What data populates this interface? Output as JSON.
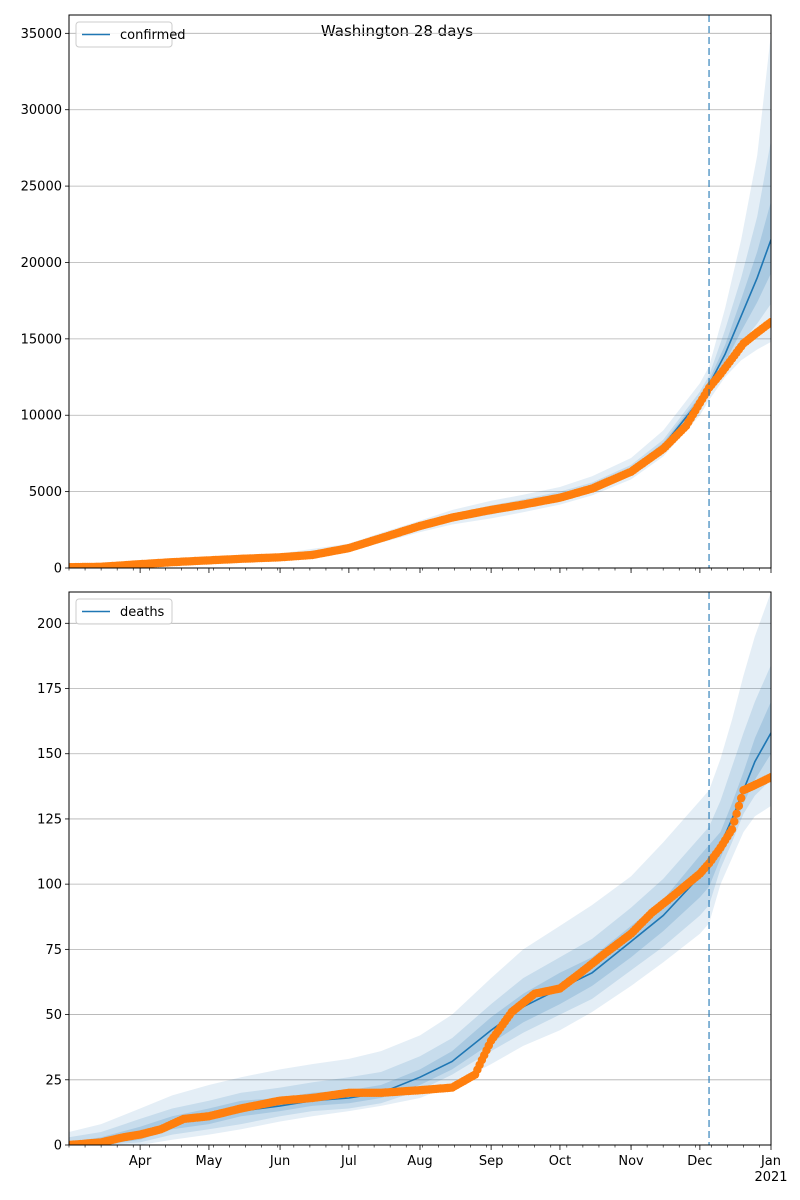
{
  "title": "Washington 28 days",
  "colors": {
    "model": "#1f77b4",
    "observed": "#ff7f0e",
    "band": "#1f77b4",
    "grid": "#b0b0b0",
    "forecast_line": "#1f77b4"
  },
  "x_axis": {
    "start": "2020-03-01",
    "end": "2021-01-01",
    "forecast_date": "2020-12-05",
    "ticks": [
      {
        "date": "2020-04-01",
        "label": "Apr",
        "sub": ""
      },
      {
        "date": "2020-05-01",
        "label": "May",
        "sub": ""
      },
      {
        "date": "2020-06-01",
        "label": "Jun",
        "sub": ""
      },
      {
        "date": "2020-07-01",
        "label": "Jul",
        "sub": ""
      },
      {
        "date": "2020-08-01",
        "label": "Aug",
        "sub": ""
      },
      {
        "date": "2020-09-01",
        "label": "Sep",
        "sub": ""
      },
      {
        "date": "2020-10-01",
        "label": "Oct",
        "sub": ""
      },
      {
        "date": "2020-11-01",
        "label": "Nov",
        "sub": ""
      },
      {
        "date": "2020-12-01",
        "label": "Dec",
        "sub": ""
      },
      {
        "date": "2021-01-01",
        "label": "Jan",
        "sub": "2021"
      }
    ]
  },
  "chart_data": [
    {
      "type": "line",
      "legend": "confirmed",
      "legend_position": "top-left",
      "grid": "y",
      "ylim": [
        0,
        36200
      ],
      "yticks": [
        0,
        5000,
        10000,
        15000,
        20000,
        25000,
        30000,
        35000
      ],
      "model_fit": {
        "x": [
          "2020-03-01",
          "2020-04-01",
          "2020-05-01",
          "2020-06-01",
          "2020-07-01",
          "2020-07-15",
          "2020-08-01",
          "2020-08-15",
          "2020-09-01",
          "2020-09-15",
          "2020-10-01",
          "2020-10-15",
          "2020-11-01",
          "2020-11-15",
          "2020-12-01",
          "2020-12-05",
          "2020-12-12",
          "2020-12-19",
          "2020-12-26",
          "2021-01-01"
        ],
        "y": [
          50,
          250,
          500,
          750,
          1300,
          1950,
          2700,
          3300,
          3800,
          4200,
          4700,
          5300,
          6400,
          8000,
          11000,
          12000,
          14000,
          16500,
          19000,
          21500
        ]
      },
      "bands": [
        {
          "level": "outer",
          "lower": [
            0,
            100,
            300,
            550,
            1050,
            1650,
            2350,
            2850,
            3250,
            3650,
            4150,
            4750,
            5800,
            7300,
            10000,
            11000,
            12500,
            13600,
            14300,
            14800
          ],
          "upper": [
            150,
            400,
            700,
            950,
            1600,
            2300,
            3100,
            3800,
            4400,
            4800,
            5300,
            6000,
            7200,
            9000,
            12100,
            13200,
            17000,
            21500,
            27000,
            35000
          ]
        },
        {
          "level": "mid",
          "lower": [
            25,
            170,
            400,
            650,
            1150,
            1780,
            2500,
            3050,
            3500,
            3900,
            4400,
            5000,
            6050,
            7600,
            10450,
            11400,
            13000,
            14700,
            16000,
            17300
          ],
          "upper": [
            90,
            320,
            600,
            860,
            1450,
            2130,
            2900,
            3550,
            4100,
            4500,
            5000,
            5600,
            6750,
            8400,
            11550,
            12600,
            15600,
            19000,
            23000,
            28000
          ]
        },
        {
          "level": "inner",
          "lower": [
            40,
            210,
            450,
            700,
            1220,
            1860,
            2600,
            3180,
            3650,
            4050,
            4550,
            5150,
            6250,
            7800,
            10750,
            11700,
            13450,
            15500,
            17400,
            19300
          ],
          "upper": [
            65,
            290,
            550,
            800,
            1380,
            2040,
            2800,
            3420,
            3950,
            4350,
            4850,
            5450,
            6550,
            8200,
            11250,
            12300,
            14600,
            17600,
            20700,
            24000
          ]
        }
      ],
      "observed": {
        "x": [
          "2020-03-01",
          "2020-03-15",
          "2020-04-01",
          "2020-04-15",
          "2020-05-01",
          "2020-05-15",
          "2020-06-01",
          "2020-06-15",
          "2020-07-01",
          "2020-07-15",
          "2020-08-01",
          "2020-08-15",
          "2020-09-01",
          "2020-09-15",
          "2020-10-01",
          "2020-10-15",
          "2020-11-01",
          "2020-11-15",
          "2020-11-25",
          "2020-12-01",
          "2020-12-05",
          "2020-12-10",
          "2020-12-15",
          "2020-12-20",
          "2020-12-25",
          "2021-01-01"
        ],
        "y": [
          50,
          80,
          250,
          380,
          500,
          600,
          700,
          850,
          1300,
          1950,
          2750,
          3300,
          3800,
          4150,
          4600,
          5200,
          6300,
          7800,
          9300,
          10800,
          11800,
          12700,
          13700,
          14700,
          15300,
          16100
        ]
      }
    },
    {
      "type": "line",
      "legend": "deaths",
      "legend_position": "top-left",
      "grid": "y",
      "ylim": [
        0,
        212
      ],
      "yticks": [
        0,
        25,
        50,
        75,
        100,
        125,
        150,
        175,
        200
      ],
      "model_fit": {
        "x": [
          "2020-03-01",
          "2020-03-15",
          "2020-04-01",
          "2020-04-15",
          "2020-05-01",
          "2020-05-15",
          "2020-06-01",
          "2020-06-15",
          "2020-07-01",
          "2020-07-15",
          "2020-08-01",
          "2020-08-15",
          "2020-09-01",
          "2020-09-15",
          "2020-10-01",
          "2020-10-15",
          "2020-11-01",
          "2020-11-15",
          "2020-12-01",
          "2020-12-05",
          "2020-12-10",
          "2020-12-15",
          "2020-12-20",
          "2020-12-25",
          "2021-01-01"
        ],
        "y": [
          0,
          1,
          4,
          8,
          11,
          13,
          15,
          17,
          18,
          20,
          26,
          32,
          44,
          53,
          60,
          66,
          78,
          88,
          103,
          107,
          115,
          125,
          136,
          147,
          158
        ]
      },
      "bands": [
        {
          "level": "outer",
          "lower": [
            0,
            0,
            0,
            2,
            4,
            6,
            9,
            11,
            13,
            15,
            18,
            23,
            31,
            38,
            44,
            51,
            61,
            70,
            81,
            85,
            100,
            110,
            120,
            126,
            130
          ],
          "upper": [
            5,
            8,
            14,
            19,
            23,
            26,
            29,
            31,
            33,
            36,
            42,
            50,
            64,
            75,
            84,
            92,
            103,
            116,
            132,
            136,
            148,
            163,
            180,
            195,
            212
          ]
        },
        {
          "level": "mid",
          "lower": [
            0,
            0,
            1,
            4,
            6,
            8,
            11,
            13,
            14,
            16,
            21,
            27,
            36,
            43,
            50,
            56,
            67,
            76,
            88,
            92,
            106,
            116,
            127,
            134,
            140
          ],
          "upper": [
            3,
            5,
            10,
            14,
            17,
            20,
            22,
            24,
            26,
            28,
            34,
            41,
            54,
            64,
            72,
            79,
            91,
            102,
            118,
            122,
            132,
            145,
            158,
            170,
            184
          ]
        },
        {
          "level": "inner",
          "lower": [
            0,
            0,
            2,
            6,
            8,
            11,
            13,
            15,
            16,
            18,
            23,
            29,
            39,
            47,
            54,
            61,
            72,
            82,
            95,
            99,
            110,
            120,
            131,
            140,
            150
          ],
          "upper": [
            1,
            3,
            7,
            11,
            14,
            17,
            18,
            20,
            21,
            23,
            29,
            36,
            49,
            58,
            66,
            72,
            84,
            94,
            111,
            115,
            120,
            131,
            143,
            156,
            170
          ]
        }
      ],
      "observed": {
        "x": [
          "2020-03-01",
          "2020-03-15",
          "2020-03-25",
          "2020-04-01",
          "2020-04-10",
          "2020-04-20",
          "2020-05-01",
          "2020-05-15",
          "2020-06-01",
          "2020-06-15",
          "2020-07-01",
          "2020-07-15",
          "2020-08-01",
          "2020-08-15",
          "2020-08-25",
          "2020-09-01",
          "2020-09-10",
          "2020-09-20",
          "2020-10-01",
          "2020-10-10",
          "2020-10-20",
          "2020-11-01",
          "2020-11-10",
          "2020-11-20",
          "2020-12-01",
          "2020-12-05",
          "2020-12-10",
          "2020-12-15",
          "2020-12-20",
          "2020-12-25",
          "2021-01-01"
        ],
        "y": [
          0,
          1,
          3,
          4,
          6,
          10,
          11,
          14,
          17,
          18,
          20,
          20,
          21,
          22,
          27,
          40,
          51,
          58,
          60,
          66,
          73,
          81,
          89,
          96,
          104,
          108,
          114,
          121,
          136,
          138,
          141
        ]
      }
    }
  ]
}
